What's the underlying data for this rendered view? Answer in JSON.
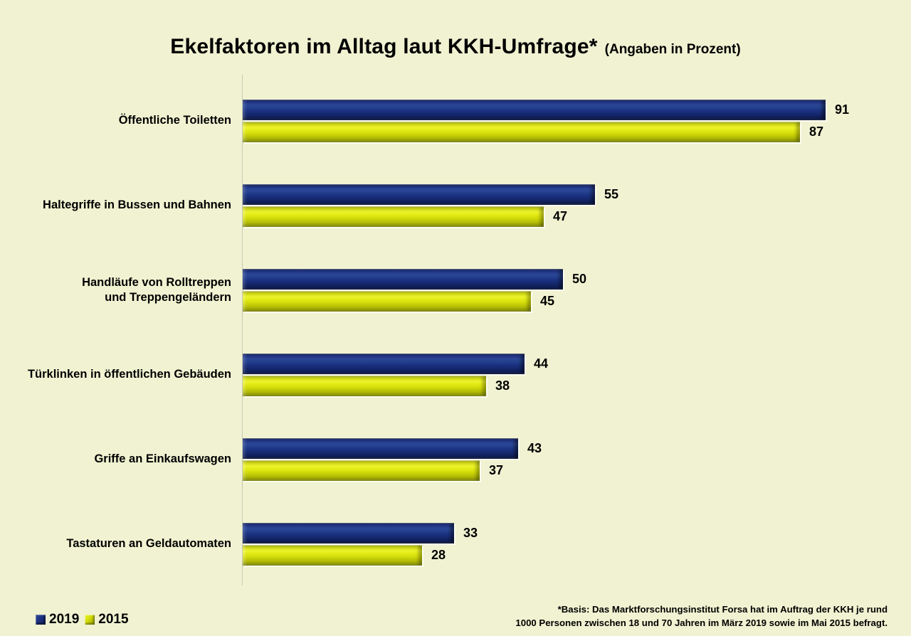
{
  "title": {
    "main": "Ekelfaktoren im Alltag laut KKH-Umfrage*",
    "sub": "(Angaben in Prozent)"
  },
  "legend": {
    "items": [
      {
        "label": "2019",
        "color": "#1d3484"
      },
      {
        "label": "2015",
        "color": "#d6df0a"
      }
    ]
  },
  "footnote": {
    "line1": "*Basis: Das Marktforschungsinstitut Forsa hat im Auftrag der KKH je rund",
    "line2": "1000 Personen zwischen 18 und 70 Jahren im März 2019 sowie im Mai 2015 befragt."
  },
  "colors": {
    "background": "#f0f2d1",
    "axis_line": "#c6c9b5",
    "series_2019": "#1d3484",
    "series_2015": "#d6df0a",
    "text": "#000000"
  },
  "chart_data": {
    "type": "bar",
    "orientation": "horizontal",
    "title": "Ekelfaktoren im Alltag laut KKH-Umfrage* (Angaben in Prozent)",
    "categories": [
      "Öffentliche Toiletten",
      "Haltegriffe in Bussen und Bahnen",
      "Handläufe von Rolltreppen\nund Treppengeländern",
      "Türklinken in öffentlichen Gebäuden",
      "Griffe an Einkaufswagen",
      "Tastaturen an Geldautomaten"
    ],
    "series": [
      {
        "name": "2019",
        "color": "#1d3484",
        "values": [
          91,
          55,
          50,
          44,
          43,
          33
        ]
      },
      {
        "name": "2015",
        "color": "#d6df0a",
        "values": [
          87,
          47,
          45,
          38,
          37,
          28
        ]
      }
    ],
    "xlim": [
      0,
      100
    ],
    "unit": "percent",
    "value_labels": true,
    "grid": false,
    "legend_position": "bottom-left"
  }
}
